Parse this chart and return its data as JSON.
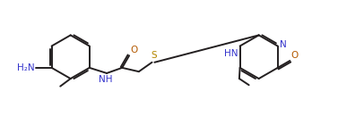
{
  "bg_color": "#ffffff",
  "bond_color": "#231f20",
  "atom_colors": {
    "N": "#3333cc",
    "O": "#b35900",
    "S": "#b38600",
    "H2N": "#3333cc",
    "HN": "#3333cc"
  },
  "line_width": 1.4,
  "font_size": 7.5,
  "figsize": [
    3.77,
    1.31
  ],
  "dpi": 100,
  "xlim": [
    0,
    10.5
  ],
  "ylim": [
    0,
    3.6
  ]
}
